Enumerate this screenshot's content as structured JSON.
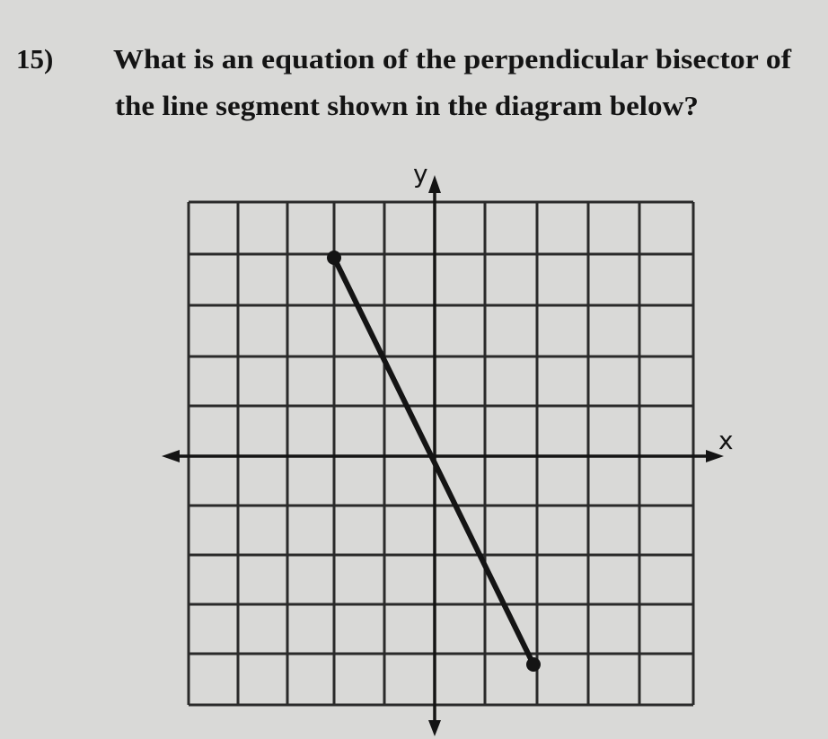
{
  "question": {
    "number": "15)",
    "lines": [
      "What is an equation of the perpendicular bisector of",
      "the line segment shown in the diagram below?"
    ]
  },
  "diagram": {
    "y_label": "y",
    "x_label": "x"
  }
}
